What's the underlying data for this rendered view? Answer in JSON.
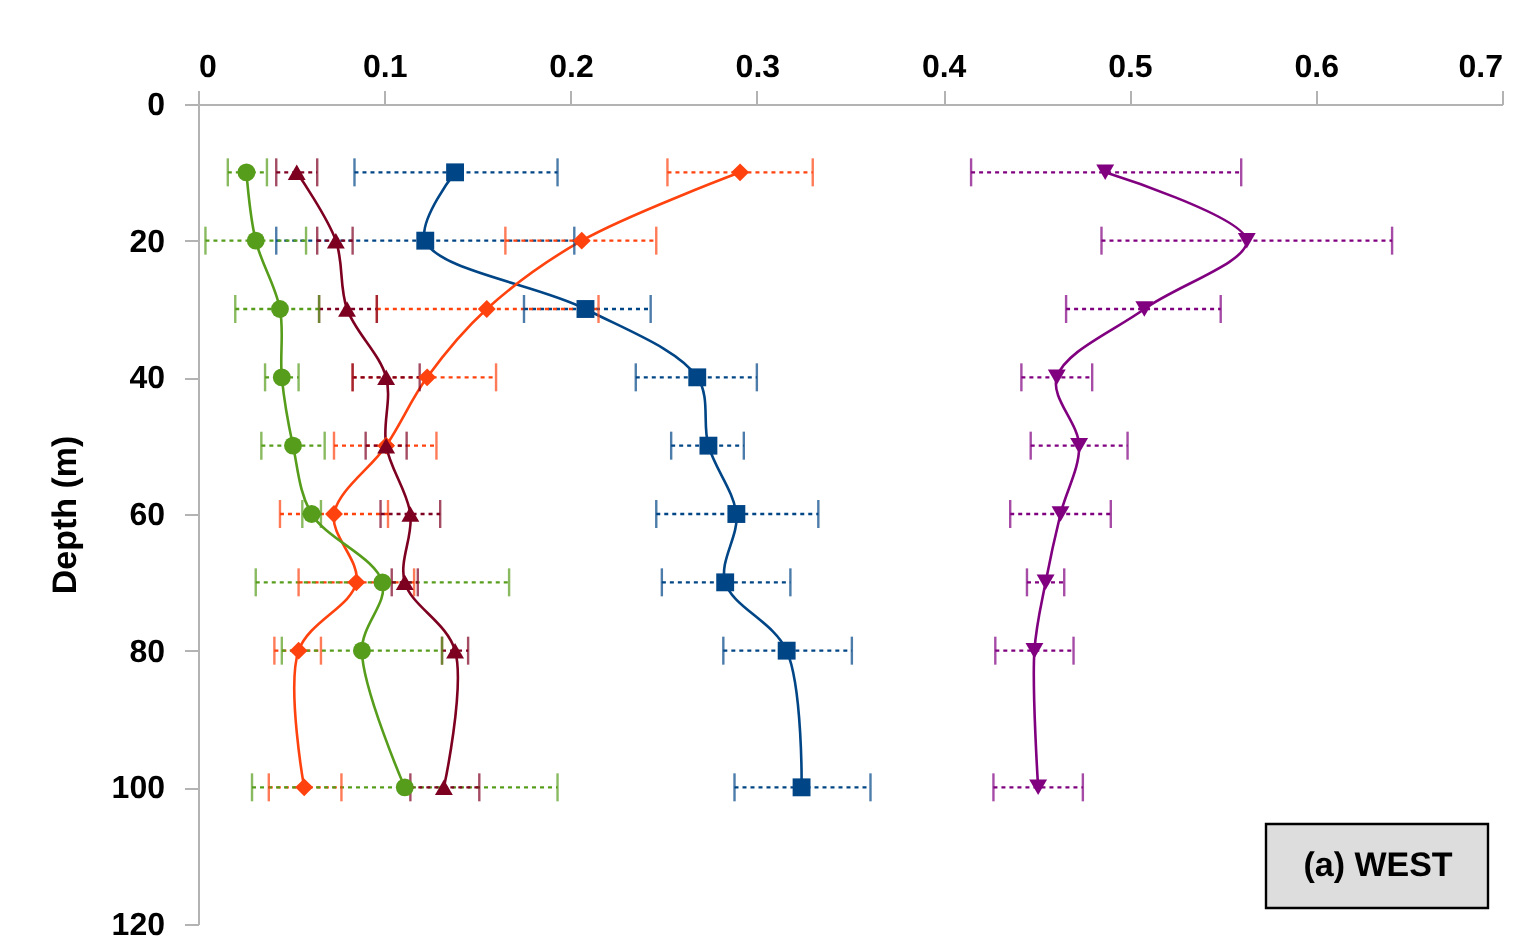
{
  "chart_data": {
    "type": "line",
    "orientation": "horizontal",
    "ylabel": "Depth (m)",
    "x": [
      10,
      20,
      30,
      40,
      50,
      60,
      70,
      80,
      100
    ],
    "xlim": [
      0,
      0.7
    ],
    "xticks": [
      0,
      0.1,
      0.2,
      0.3,
      0.4,
      0.5,
      0.6,
      0.7
    ],
    "ylim": [
      120,
      0
    ],
    "yticks": [
      0,
      20,
      40,
      60,
      80,
      100,
      120
    ],
    "grid": false,
    "line_style": "solid",
    "annotations": [
      "(a) WEST"
    ],
    "series": [
      {
        "color": "#004586",
        "marker": "square",
        "values": [
          0.138,
          0.122,
          0.208,
          0.268,
          0.274,
          0.289,
          0.283,
          0.316,
          0.324
        ],
        "errors": [
          [
            0.084,
            0.193
          ],
          [
            0.042,
            0.202
          ],
          [
            0.175,
            0.243
          ],
          [
            0.235,
            0.3
          ],
          [
            0.254,
            0.293
          ],
          [
            0.246,
            0.333
          ],
          [
            0.249,
            0.318
          ],
          [
            0.282,
            0.351
          ],
          [
            0.288,
            0.361
          ]
        ]
      },
      {
        "color": "#ff420e",
        "marker": "diamond",
        "values": [
          0.291,
          0.206,
          0.155,
          0.123,
          0.101,
          0.073,
          0.085,
          0.054,
          0.057
        ],
        "errors": [
          [
            0.252,
            0.33
          ],
          [
            0.165,
            0.246
          ],
          [
            0.096,
            0.215
          ],
          [
            0.083,
            0.16
          ],
          [
            0.073,
            0.128
          ],
          [
            0.044,
            0.102
          ],
          [
            0.054,
            0.116
          ],
          [
            0.041,
            0.066
          ],
          [
            0.038,
            0.077
          ]
        ]
      },
      {
        "color": "#579d1c",
        "marker": "circle",
        "values": [
          0.026,
          0.031,
          0.044,
          0.045,
          0.051,
          0.061,
          0.099,
          0.088,
          0.111
        ],
        "errors": [
          [
            0.016,
            0.037
          ],
          [
            0.004,
            0.058
          ],
          [
            0.02,
            0.065
          ],
          [
            0.036,
            0.054
          ],
          [
            0.034,
            0.068
          ],
          [
            0.056,
            0.066
          ],
          [
            0.031,
            0.167
          ],
          [
            0.045,
            0.131
          ],
          [
            0.029,
            0.193
          ]
        ]
      },
      {
        "color": "#7e0021",
        "marker": "triangle",
        "values": [
          0.053,
          0.074,
          0.08,
          0.101,
          0.101,
          0.114,
          0.111,
          0.138,
          0.132
        ],
        "errors": [
          [
            0.042,
            0.064
          ],
          [
            0.064,
            0.083
          ],
          [
            0.065,
            0.096
          ],
          [
            0.083,
            0.119
          ],
          [
            0.09,
            0.112
          ],
          [
            0.098,
            0.13
          ],
          [
            0.104,
            0.118
          ],
          [
            0.131,
            0.145
          ],
          [
            0.114,
            0.151
          ]
        ]
      },
      {
        "color": "#800080",
        "marker": "triangle-down",
        "values": [
          0.487,
          0.563,
          0.508,
          0.461,
          0.473,
          0.463,
          0.455,
          0.449,
          0.451
        ],
        "errors": [
          [
            0.415,
            0.56
          ],
          [
            0.485,
            0.641
          ],
          [
            0.466,
            0.549
          ],
          [
            0.442,
            0.48
          ],
          [
            0.447,
            0.499
          ],
          [
            0.436,
            0.49
          ],
          [
            0.445,
            0.465
          ],
          [
            0.428,
            0.47
          ],
          [
            0.427,
            0.475
          ]
        ]
      }
    ]
  }
}
